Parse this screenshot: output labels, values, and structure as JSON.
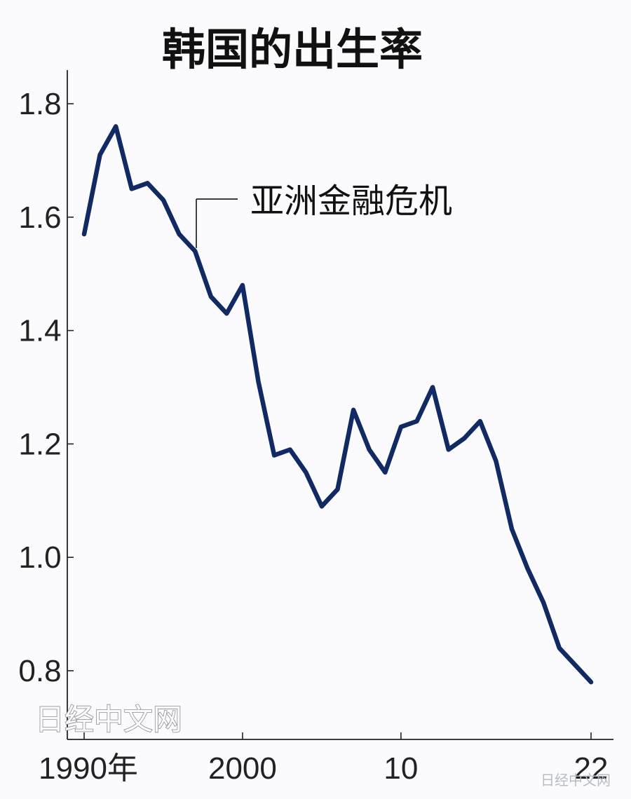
{
  "page": {
    "watermark_text": "日经中文网",
    "small_watermark_text": "日经中文网"
  },
  "chart_data": {
    "type": "line",
    "title": "韩国的出生率",
    "xlabel": "",
    "ylabel": "",
    "x": [
      1990,
      1991,
      1992,
      1993,
      1994,
      1995,
      1996,
      1997,
      1998,
      1999,
      2000,
      2001,
      2002,
      2003,
      2004,
      2005,
      2006,
      2007,
      2008,
      2009,
      2010,
      2011,
      2012,
      2013,
      2014,
      2015,
      2016,
      2017,
      2018,
      2019,
      2020,
      2021,
      2022
    ],
    "series": [
      {
        "values": [
          1.57,
          1.71,
          1.76,
          1.65,
          1.66,
          1.63,
          1.57,
          1.54,
          1.46,
          1.43,
          1.48,
          1.31,
          1.18,
          1.19,
          1.15,
          1.09,
          1.12,
          1.26,
          1.19,
          1.15,
          1.23,
          1.24,
          1.3,
          1.19,
          1.21,
          1.24,
          1.17,
          1.05,
          0.98,
          0.92,
          0.84,
          0.81,
          0.78
        ]
      }
    ],
    "xlim": [
      1990,
      2022
    ],
    "ylim": [
      0.7,
      1.85
    ],
    "yticks": [
      0.8,
      1.0,
      1.2,
      1.4,
      1.6,
      1.8
    ],
    "ytick_labels": [
      "0.8",
      "1.0",
      "1.2",
      "1.4",
      "1.6",
      "1.8"
    ],
    "xticks": [
      1990,
      2000,
      2010,
      2022
    ],
    "xtick_labels": [
      "1990年",
      "2000",
      "10",
      "22"
    ],
    "line_color": "#102a66",
    "axis_color": "#222222",
    "grid": false,
    "annotations": [
      {
        "text": "亚洲金融危机",
        "x": 1997
      }
    ]
  }
}
